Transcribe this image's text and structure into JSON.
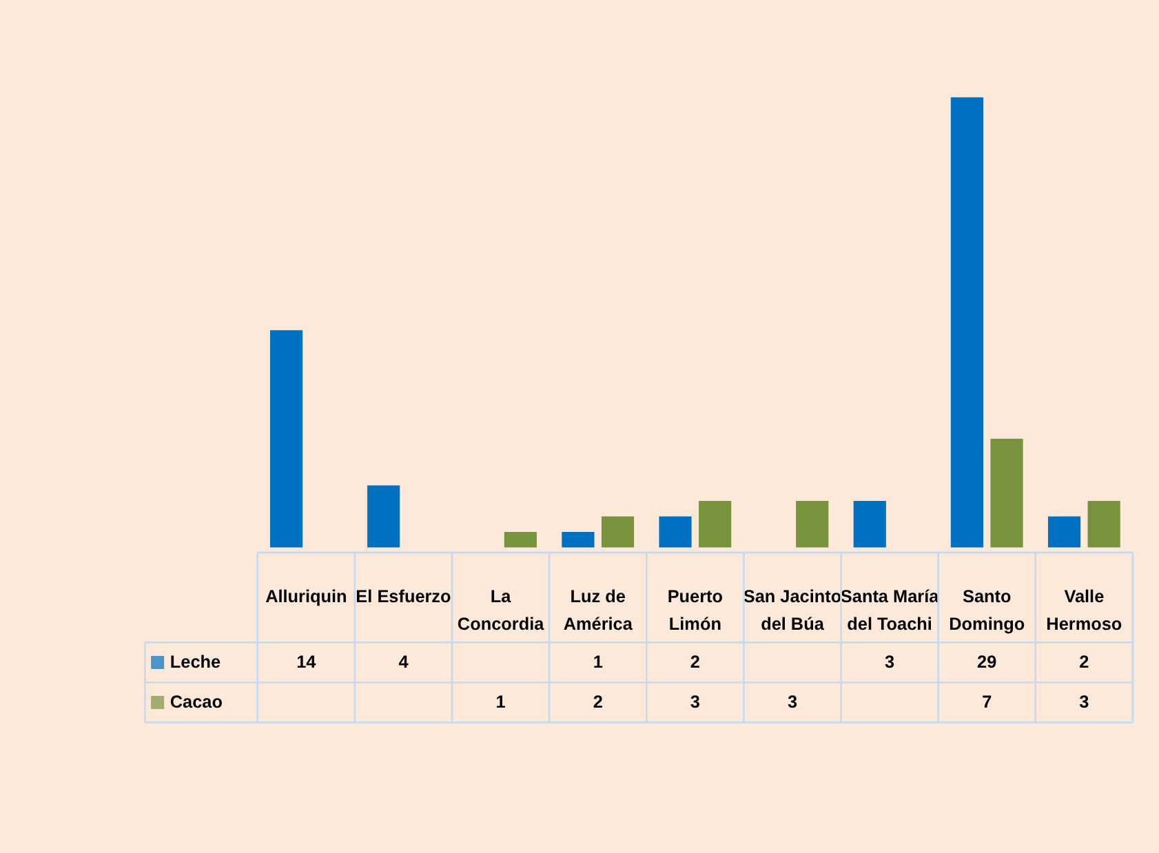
{
  "chart_data": {
    "type": "bar",
    "categories": [
      "Alluriquin",
      "El Esfuerzo",
      "La Concordia",
      "Luz de América",
      "Puerto Limón",
      "San Jacinto del Búa",
      "Santa María del Toachi",
      "Santo Domingo",
      "Valle Hermoso"
    ],
    "series": [
      {
        "name": "Leche",
        "color": "#0070c0",
        "values": [
          14,
          4,
          null,
          1,
          2,
          null,
          3,
          29,
          2
        ]
      },
      {
        "name": "Cacao",
        "color": "#77933c",
        "values": [
          null,
          null,
          1,
          2,
          3,
          3,
          null,
          7,
          3
        ]
      }
    ],
    "data_labels": true,
    "legend": "bottom left",
    "grid": false
  }
}
